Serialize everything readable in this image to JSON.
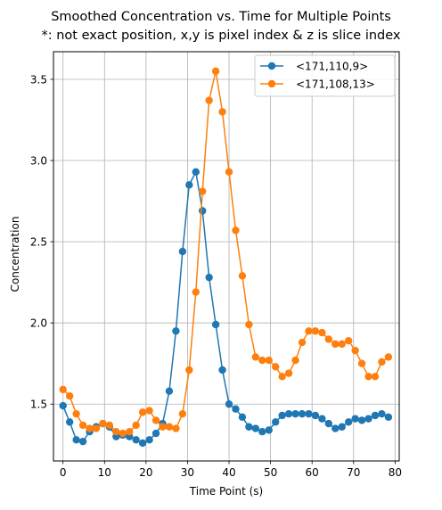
{
  "chart_data": {
    "type": "line",
    "title": "Smoothed Concentration vs. Time for Multiple Points",
    "subtitle": "*: not exact position, x,y is pixel index & z is slice index",
    "xlabel": "Time Point (s)",
    "ylabel": "Concentration",
    "xlim": [
      -2.3,
      81.0
    ],
    "ylim": [
      1.15,
      3.67
    ],
    "xticks": [
      0,
      10,
      20,
      30,
      40,
      50,
      60,
      70,
      80
    ],
    "yticks": [
      1.5,
      2.0,
      2.5,
      3.0,
      3.5
    ],
    "xtick_labels": [
      "0",
      "10",
      "20",
      "30",
      "40",
      "50",
      "60",
      "70",
      "80"
    ],
    "ytick_labels": [
      "1.5",
      "2.0",
      "2.5",
      "3.0",
      "3.5"
    ],
    "grid": true,
    "legend_position": "top-right",
    "x": [
      0,
      1.6,
      3.2,
      4.8,
      6.4,
      8.0,
      9.6,
      11.2,
      12.8,
      14.4,
      16.0,
      17.6,
      19.2,
      20.8,
      22.4,
      24.0,
      25.6,
      27.2,
      28.8,
      30.4,
      32.0,
      33.6,
      35.2,
      36.8,
      38.4,
      40.0,
      41.6,
      43.2,
      44.8,
      46.4,
      48.0,
      49.6,
      51.2,
      52.8,
      54.4,
      56.0,
      57.6,
      59.2,
      60.8,
      62.4,
      64.0,
      65.6,
      67.2,
      68.8,
      70.4,
      72.0,
      73.6,
      75.2,
      76.8,
      78.4
    ],
    "series": [
      {
        "name": "<171,110,9>",
        "color": "#1f77b4",
        "values": [
          1.49,
          1.39,
          1.28,
          1.27,
          1.33,
          1.36,
          1.38,
          1.36,
          1.3,
          1.31,
          1.3,
          1.28,
          1.26,
          1.28,
          1.32,
          1.38,
          1.58,
          1.95,
          2.44,
          2.85,
          2.93,
          2.69,
          2.28,
          1.99,
          1.71,
          1.5,
          1.47,
          1.42,
          1.36,
          1.35,
          1.33,
          1.34,
          1.39,
          1.43,
          1.44,
          1.44,
          1.44,
          1.44,
          1.43,
          1.41,
          1.38,
          1.35,
          1.36,
          1.39,
          1.41,
          1.4,
          1.41,
          1.43,
          1.44,
          1.42
        ]
      },
      {
        "name": "<171,108,13>",
        "color": "#ff7f0e",
        "values": [
          1.59,
          1.55,
          1.44,
          1.37,
          1.35,
          1.35,
          1.38,
          1.37,
          1.33,
          1.32,
          1.33,
          1.37,
          1.45,
          1.46,
          1.4,
          1.36,
          1.36,
          1.35,
          1.44,
          1.71,
          2.19,
          2.81,
          3.37,
          3.55,
          3.3,
          2.93,
          2.57,
          2.29,
          1.99,
          1.79,
          1.77,
          1.77,
          1.73,
          1.67,
          1.69,
          1.77,
          1.88,
          1.95,
          1.95,
          1.94,
          1.9,
          1.87,
          1.87,
          1.89,
          1.83,
          1.75,
          1.67,
          1.67,
          1.76,
          1.79
        ]
      }
    ]
  }
}
